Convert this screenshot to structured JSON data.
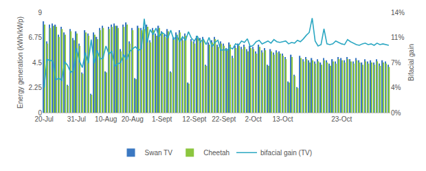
{
  "chart_data": {
    "type": "bar",
    "categories": [
      "20-Jul",
      null,
      null,
      null,
      null,
      null,
      null,
      null,
      null,
      null,
      null,
      "31-Jul",
      null,
      null,
      null,
      null,
      null,
      null,
      null,
      null,
      null,
      "10-Aug",
      null,
      null,
      null,
      null,
      null,
      null,
      null,
      null,
      "20-Aug",
      null,
      null,
      null,
      null,
      null,
      null,
      null,
      null,
      null,
      "1-Sept",
      null,
      null,
      null,
      null,
      null,
      null,
      null,
      null,
      null,
      null,
      "12-Sept",
      null,
      null,
      null,
      null,
      null,
      null,
      null,
      null,
      null,
      "22-Sept",
      null,
      null,
      null,
      null,
      null,
      null,
      null,
      null,
      null,
      "2-Oct",
      null,
      null,
      null,
      null,
      null,
      null,
      null,
      null,
      null,
      "13-Oct",
      null,
      null,
      null,
      null,
      null,
      null,
      null,
      null,
      null,
      null,
      null,
      null,
      null,
      null,
      null,
      null,
      null,
      null,
      null,
      "23-Oct",
      null,
      null,
      null,
      null,
      null,
      null,
      null,
      null,
      null,
      null,
      null,
      null,
      null,
      null,
      null,
      null
    ],
    "series": [
      {
        "name": "Swan TV",
        "type": "bar",
        "color": "#3b78c2",
        "values": [
          8.2,
          6.4,
          7.9,
          8.0,
          7.9,
          7.0,
          7.7,
          7.2,
          2.5,
          7.5,
          6.7,
          7.3,
          6.2,
          3.6,
          7.4,
          7.1,
          1.7,
          7.2,
          6.8,
          7.6,
          7.8,
          3.7,
          7.7,
          7.9,
          8.0,
          7.8,
          5.7,
          7.9,
          8.1,
          6.4,
          7.6,
          3.1,
          7.8,
          7.6,
          7.7,
          7.9,
          6.5,
          7.6,
          7.1,
          7.8,
          7.3,
          7.0,
          7.5,
          3.7,
          6.8,
          7.2,
          7.4,
          6.7,
          7.1,
          2.7,
          6.6,
          6.4,
          6.9,
          6.7,
          6.8,
          4.3,
          6.3,
          6.5,
          6.8,
          6.1,
          6.4,
          6.2,
          5.8,
          6.3,
          5.1,
          6.0,
          6.2,
          5.9,
          6.1,
          5.7,
          6.0,
          5.9,
          5.5,
          6.1,
          5.6,
          5.8,
          4.3,
          5.7,
          5.4,
          5.6,
          5.5,
          5.3,
          5.0,
          2.8,
          5.2,
          3.4,
          2.3,
          5.1,
          4.8,
          5.0,
          4.7,
          4.9,
          4.6,
          4.8,
          4.5,
          4.9,
          4.7,
          4.4,
          4.8,
          4.6,
          5.0,
          4.9,
          4.7,
          5.0,
          4.8,
          4.6,
          4.9,
          4.7,
          4.5,
          4.8,
          4.6,
          4.7,
          4.5,
          4.8,
          4.4,
          4.7,
          4.6,
          4.3
        ]
      },
      {
        "name": "Cheetah",
        "type": "bar",
        "color": "#8cc63f",
        "values": [
          7.9,
          6.2,
          7.6,
          7.8,
          7.7,
          6.8,
          7.5,
          7.0,
          2.4,
          7.3,
          6.5,
          7.1,
          6.0,
          3.5,
          7.2,
          6.9,
          1.6,
          7.0,
          6.6,
          7.4,
          7.6,
          3.6,
          7.5,
          7.7,
          7.8,
          7.6,
          5.5,
          7.7,
          7.9,
          6.2,
          7.4,
          3.0,
          7.6,
          7.4,
          7.5,
          7.7,
          6.3,
          7.4,
          6.9,
          7.6,
          7.1,
          6.8,
          7.3,
          3.6,
          6.6,
          7.0,
          7.2,
          6.5,
          6.9,
          2.6,
          6.4,
          6.2,
          6.7,
          6.5,
          6.6,
          4.2,
          6.1,
          6.3,
          6.6,
          5.9,
          6.2,
          6.0,
          5.6,
          6.1,
          4.9,
          5.8,
          6.0,
          5.7,
          5.9,
          5.5,
          5.8,
          5.7,
          5.3,
          5.9,
          5.4,
          5.6,
          4.2,
          5.5,
          5.2,
          5.4,
          5.3,
          5.1,
          4.8,
          2.7,
          5.0,
          3.3,
          2.2,
          4.9,
          4.6,
          4.8,
          4.5,
          4.7,
          4.4,
          4.6,
          4.3,
          4.7,
          4.5,
          4.2,
          4.6,
          4.4,
          4.8,
          4.7,
          4.5,
          4.8,
          4.6,
          4.4,
          4.7,
          4.5,
          4.3,
          4.6,
          4.4,
          4.5,
          4.3,
          4.6,
          4.2,
          4.5,
          4.4,
          4.1
        ]
      },
      {
        "name": "bifacial gain (TV)",
        "type": "line",
        "axis": "y2",
        "color": "#2ba7c2",
        "values": [
          3.5,
          7.4,
          7.3,
          7.2,
          4.6,
          4.8,
          4.5,
          7.1,
          6.6,
          5.6,
          5.9,
          9.0,
          7.2,
          6.3,
          8.4,
          6.9,
          10.2,
          6.9,
          8.7,
          7.5,
          7.6,
          9.3,
          8.2,
          8.6,
          6.5,
          6.8,
          7.0,
          8.1,
          7.4,
          8.5,
          8.9,
          9.2,
          8.7,
          8.9,
          13.1,
          9.8,
          11.6,
          10.9,
          11.8,
          10.6,
          11.2,
          10.9,
          10.4,
          11.5,
          10.2,
          10.8,
          9.9,
          10.6,
          10.1,
          11.3,
          10.4,
          10.0,
          10.7,
          9.8,
          10.3,
          9.5,
          10.5,
          9.2,
          9.8,
          10.1,
          8.7,
          8.8,
          8.7,
          9.1,
          8.9,
          9.6,
          9.4,
          10.0,
          9.8,
          10.3,
          9.2,
          9.4,
          9.9,
          10.1,
          9.6,
          9.8,
          10.0,
          9.7,
          10.2,
          9.9,
          9.8,
          9.9,
          10.0,
          9.6,
          9.8,
          9.7,
          10.1,
          9.9,
          10.3,
          10.8,
          11.2,
          13.2,
          10.0,
          9.3,
          9.5,
          11.7,
          9.6,
          9.5,
          9.6,
          10.0,
          9.8,
          9.6,
          9.5,
          10.2,
          9.9,
          9.7,
          9.5,
          9.4,
          9.6,
          9.7,
          9.5,
          9.6,
          9.4,
          9.7,
          9.5,
          9.6,
          9.5,
          9.4
        ]
      }
    ],
    "y_label": "Energy generation (kWh/kWp)",
    "y2_label": "Bifacial gain",
    "ylim": [
      0,
      9
    ],
    "yticks": [
      0,
      2.25,
      4.5,
      6.75,
      9
    ],
    "y2lim": [
      0,
      14
    ],
    "y2ticks": [
      {
        "value": 0,
        "label": "0%"
      },
      {
        "value": 3.5,
        "label": "4%"
      },
      {
        "value": 7,
        "label": "7%"
      },
      {
        "value": 10.5,
        "label": "11%"
      },
      {
        "value": 14,
        "label": "14%"
      }
    ],
    "grid": false,
    "legend": "bottom"
  }
}
